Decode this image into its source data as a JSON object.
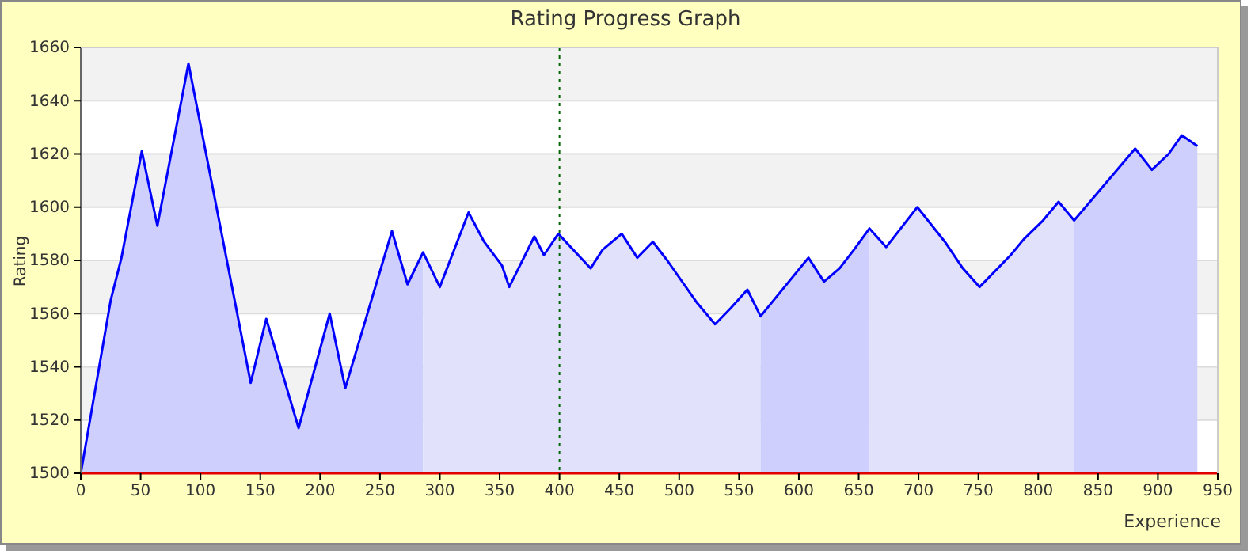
{
  "chart_data": {
    "type": "area",
    "title": "Rating Progress Graph",
    "xlabel": "Experience",
    "ylabel": "Rating",
    "xlim": [
      0,
      950
    ],
    "ylim": [
      1500,
      1660
    ],
    "xticks": [
      0,
      50,
      100,
      150,
      200,
      250,
      300,
      350,
      400,
      450,
      500,
      550,
      600,
      650,
      700,
      750,
      800,
      850,
      900,
      950
    ],
    "yticks": [
      1500,
      1520,
      1540,
      1560,
      1580,
      1600,
      1620,
      1640,
      1660
    ],
    "grid": "y",
    "marker": "none",
    "line_style": "solid",
    "ref_lines": [
      {
        "axis": "x",
        "value": 400,
        "color": "#006400",
        "line_style": "dotted"
      }
    ],
    "series": [
      {
        "color": "#cfcffd",
        "x": [
          0,
          25,
          34,
          51,
          64,
          90,
          142,
          155,
          182,
          208,
          221,
          260,
          273,
          286
        ],
        "values": [
          1500,
          1565,
          1581,
          1621,
          1593,
          1654,
          1534,
          1558,
          1517,
          1560,
          1532,
          1591,
          1571,
          1583
        ]
      },
      {
        "color": "#e1e1fc",
        "x": [
          286,
          300,
          324,
          337,
          352,
          358,
          379,
          387,
          399,
          426,
          436,
          452,
          465,
          478,
          490,
          515,
          530,
          543,
          557,
          568
        ],
        "values": [
          1583,
          1570,
          1598,
          1587,
          1578,
          1570,
          1589,
          1582,
          1590,
          1577,
          1584,
          1590,
          1581,
          1587,
          1580,
          1564,
          1556,
          1562,
          1569,
          1559
        ]
      },
      {
        "color": "#cfcffd",
        "x": [
          568,
          608,
          621,
          634,
          646,
          659
        ],
        "values": [
          1559,
          1581,
          1572,
          1577,
          1584,
          1592
        ]
      },
      {
        "color": "#e1e1fc",
        "x": [
          659,
          673,
          699,
          722,
          737,
          751,
          777,
          788,
          804,
          817,
          830
        ],
        "values": [
          1592,
          1585,
          1600,
          1587,
          1577,
          1570,
          1582,
          1588,
          1595,
          1602,
          1595
        ]
      },
      {
        "color": "#cfcffd",
        "x": [
          830,
          881,
          895,
          909,
          920,
          933
        ],
        "values": [
          1595,
          1622,
          1614,
          1620,
          1627,
          1623
        ]
      },
      {
        "type": "line",
        "color": "#0000ff",
        "x": [
          0,
          25,
          34,
          51,
          64,
          90,
          142,
          155,
          182,
          208,
          221,
          260,
          273,
          286,
          300,
          324,
          337,
          352,
          358,
          379,
          387,
          399,
          426,
          436,
          452,
          465,
          478,
          490,
          515,
          530,
          543,
          557,
          568,
          608,
          621,
          634,
          646,
          659,
          673,
          699,
          722,
          737,
          751,
          777,
          788,
          804,
          817,
          830,
          881,
          895,
          909,
          920,
          933
        ],
        "values": [
          1500,
          1565,
          1581,
          1621,
          1593,
          1654,
          1534,
          1558,
          1517,
          1560,
          1532,
          1591,
          1571,
          1583,
          1570,
          1598,
          1587,
          1578,
          1570,
          1589,
          1582,
          1590,
          1577,
          1584,
          1590,
          1581,
          1587,
          1580,
          1564,
          1556,
          1562,
          1569,
          1559,
          1581,
          1572,
          1577,
          1584,
          1592,
          1585,
          1600,
          1587,
          1577,
          1570,
          1582,
          1588,
          1595,
          1602,
          1595,
          1622,
          1614,
          1620,
          1627,
          1623
        ]
      }
    ]
  }
}
